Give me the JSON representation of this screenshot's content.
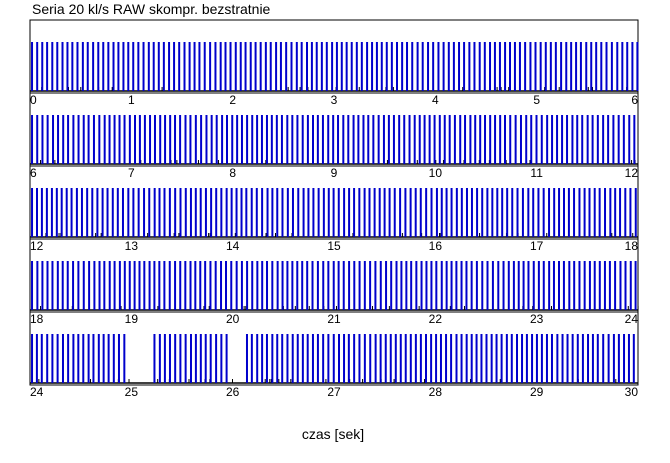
{
  "chart_data": {
    "type": "bar",
    "title": "Seria 20 kl/s RAW skompr. bezstratnie",
    "xlabel": "czas [sek]",
    "ylabel": "",
    "rows": [
      {
        "xlim": [
          0,
          6
        ],
        "ticks": [
          "0",
          "1",
          "2",
          "3",
          "4",
          "5",
          "6"
        ]
      },
      {
        "xlim": [
          6,
          12
        ],
        "ticks": [
          "6",
          "7",
          "8",
          "9",
          "10",
          "11",
          "12"
        ]
      },
      {
        "xlim": [
          12,
          18
        ],
        "ticks": [
          "12",
          "13",
          "14",
          "15",
          "16",
          "17",
          "18"
        ]
      },
      {
        "xlim": [
          18,
          24
        ],
        "ticks": [
          "18",
          "19",
          "20",
          "21",
          "22",
          "23",
          "24"
        ]
      },
      {
        "xlim": [
          24,
          30
        ],
        "ticks": [
          "24",
          "25",
          "26",
          "27",
          "28",
          "29",
          "30"
        ]
      }
    ],
    "frame_rate_per_sec": 20,
    "bar_color": "#0000cc",
    "short_bar_color": "#000000",
    "gaps": [
      {
        "start": 24.97,
        "end": 25.18
      },
      {
        "start": 25.96,
        "end": 26.12
      }
    ],
    "grid": false,
    "legend": "none"
  }
}
